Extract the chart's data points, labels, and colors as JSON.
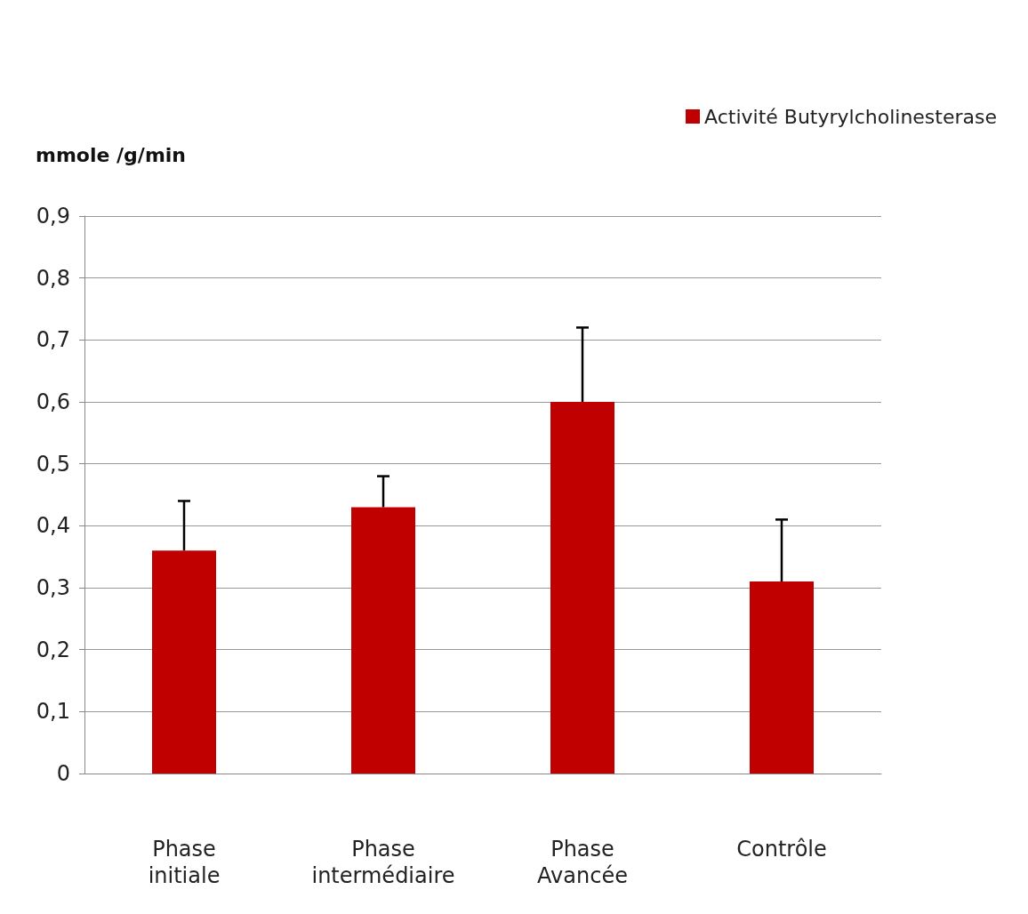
{
  "chart_data": {
    "type": "bar",
    "ylabel": "mmole /g/min",
    "categories": [
      "Phase initiale",
      "Phase intermédiaire",
      "Phase Avancée",
      "Contrôle"
    ],
    "series": [
      {
        "name": "Activité Butyrylcholinesterase",
        "color": "#c00000",
        "values": [
          0.36,
          0.43,
          0.6,
          0.31
        ],
        "errors": [
          [
            0.36,
            0.44
          ],
          [
            0.43,
            0.48
          ],
          [
            0.6,
            0.72
          ],
          [
            0.31,
            0.41
          ]
        ]
      }
    ],
    "ylim": [
      0,
      0.9
    ],
    "yticks": [
      {
        "value": 0,
        "label": "0"
      },
      {
        "value": 0.1,
        "label": "0,1"
      },
      {
        "value": 0.2,
        "label": "0,2"
      },
      {
        "value": 0.3,
        "label": "0,3"
      },
      {
        "value": 0.4,
        "label": "0,4"
      },
      {
        "value": 0.5,
        "label": "0,5"
      },
      {
        "value": 0.6,
        "label": "0,6"
      },
      {
        "value": 0.7,
        "label": "0,7"
      },
      {
        "value": 0.8,
        "label": "0,8"
      },
      {
        "value": 0.9,
        "label": "0,9"
      }
    ],
    "grid": "y",
    "legend": "top right"
  }
}
